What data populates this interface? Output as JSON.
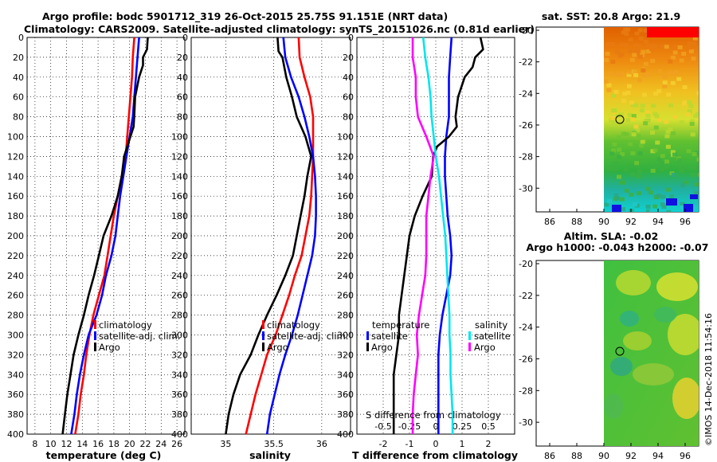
{
  "header": {
    "line1": "Argo profile: bodc 5901712_319 26-Oct-2015 25.75S 91.151E (NRT data)",
    "line2": "Climatology: CARS2009. Satellite-adjusted climatology: synTS_20151026.nc (0.81d earlier)"
  },
  "credit": "©IMOS 14-Dec-2018 11:54:16",
  "colors": {
    "climatology": "#ff0000",
    "satellite": "#0000ff",
    "argo": "#000000",
    "sal_sat": "#00e5ee",
    "sal_argo": "#ff00ff"
  },
  "chart_data": [
    {
      "type": "line",
      "name": "temperature",
      "xlabel": "temperature (deg C)",
      "ylabel": "depth",
      "xlim": [
        7,
        27
      ],
      "ylim": [
        0,
        400
      ],
      "xticks": [
        8,
        10,
        12,
        14,
        16,
        18,
        20,
        22,
        24,
        26
      ],
      "yticks": [
        0,
        20,
        40,
        60,
        80,
        100,
        120,
        140,
        160,
        180,
        200,
        220,
        240,
        260,
        280,
        300,
        320,
        340,
        360,
        380,
        400
      ],
      "legend": [
        "climatology",
        "satellite-adj. clim.",
        "Argo"
      ],
      "series": [
        {
          "name": "climatology",
          "points": [
            [
              20.6,
              0
            ],
            [
              20.4,
              20
            ],
            [
              20.3,
              40
            ],
            [
              20.1,
              60
            ],
            [
              19.9,
              80
            ],
            [
              19.7,
              100
            ],
            [
              19.5,
              120
            ],
            [
              19.0,
              140
            ],
            [
              18.5,
              160
            ],
            [
              18.0,
              180
            ],
            [
              17.6,
              200
            ],
            [
              17.2,
              220
            ],
            [
              16.8,
              240
            ],
            [
              16.1,
              260
            ],
            [
              15.4,
              280
            ],
            [
              14.9,
              300
            ],
            [
              14.5,
              320
            ],
            [
              14.2,
              340
            ],
            [
              13.8,
              360
            ],
            [
              13.5,
              380
            ],
            [
              13.1,
              400
            ]
          ]
        },
        {
          "name": "satellite-adj. clim.",
          "points": [
            [
              21.2,
              0
            ],
            [
              21.0,
              20
            ],
            [
              20.8,
              40
            ],
            [
              20.6,
              60
            ],
            [
              20.4,
              80
            ],
            [
              20.0,
              100
            ],
            [
              19.6,
              120
            ],
            [
              19.2,
              140
            ],
            [
              18.8,
              160
            ],
            [
              18.5,
              180
            ],
            [
              18.2,
              200
            ],
            [
              17.7,
              220
            ],
            [
              17.0,
              240
            ],
            [
              16.5,
              260
            ],
            [
              15.8,
              280
            ],
            [
              14.8,
              300
            ],
            [
              14.2,
              320
            ],
            [
              13.7,
              340
            ],
            [
              13.3,
              360
            ],
            [
              13.0,
              380
            ],
            [
              12.6,
              400
            ]
          ]
        },
        {
          "name": "Argo",
          "points": [
            [
              22.3,
              0
            ],
            [
              22.2,
              12
            ],
            [
              21.7,
              20
            ],
            [
              21.7,
              28
            ],
            [
              21.2,
              40
            ],
            [
              20.7,
              60
            ],
            [
              20.6,
              78
            ],
            [
              20.5,
              90
            ],
            [
              20.1,
              100
            ],
            [
              19.7,
              110
            ],
            [
              19.3,
              120
            ],
            [
              19.0,
              140
            ],
            [
              18.5,
              160
            ],
            [
              17.7,
              180
            ],
            [
              16.7,
              200
            ],
            [
              16.1,
              220
            ],
            [
              15.5,
              240
            ],
            [
              14.8,
              260
            ],
            [
              14.2,
              280
            ],
            [
              13.5,
              300
            ],
            [
              12.9,
              320
            ],
            [
              12.5,
              340
            ],
            [
              12.1,
              360
            ],
            [
              11.8,
              380
            ],
            [
              11.5,
              400
            ]
          ]
        }
      ]
    },
    {
      "type": "line",
      "name": "salinity",
      "xlabel": "salinity",
      "xlim": [
        34.64,
        36.3
      ],
      "ylim": [
        0,
        400
      ],
      "xticks": [
        35,
        35.5,
        36
      ],
      "yticks": [
        0,
        20,
        40,
        60,
        80,
        100,
        120,
        140,
        160,
        180,
        200,
        220,
        240,
        260,
        280,
        300,
        320,
        340,
        360,
        380,
        400
      ],
      "legend": [
        "climatology",
        "satellite-adj. clim.",
        "Argo"
      ],
      "series": [
        {
          "name": "climatology",
          "points": [
            [
              35.76,
              0
            ],
            [
              35.77,
              20
            ],
            [
              35.82,
              40
            ],
            [
              35.88,
              60
            ],
            [
              35.91,
              80
            ],
            [
              35.91,
              100
            ],
            [
              35.91,
              120
            ],
            [
              35.9,
              140
            ],
            [
              35.89,
              160
            ],
            [
              35.87,
              180
            ],
            [
              35.83,
              200
            ],
            [
              35.79,
              220
            ],
            [
              35.72,
              240
            ],
            [
              35.66,
              260
            ],
            [
              35.59,
              280
            ],
            [
              35.52,
              300
            ],
            [
              35.43,
              320
            ],
            [
              35.37,
              340
            ],
            [
              35.31,
              360
            ],
            [
              35.26,
              380
            ],
            [
              35.21,
              400
            ]
          ]
        },
        {
          "name": "satellite-adj. clim.",
          "points": [
            [
              35.6,
              0
            ],
            [
              35.62,
              20
            ],
            [
              35.68,
              40
            ],
            [
              35.76,
              60
            ],
            [
              35.82,
              80
            ],
            [
              35.87,
              100
            ],
            [
              35.91,
              120
            ],
            [
              35.93,
              140
            ],
            [
              35.94,
              160
            ],
            [
              35.94,
              180
            ],
            [
              35.93,
              200
            ],
            [
              35.9,
              220
            ],
            [
              35.85,
              240
            ],
            [
              35.8,
              260
            ],
            [
              35.75,
              280
            ],
            [
              35.69,
              300
            ],
            [
              35.62,
              320
            ],
            [
              35.56,
              340
            ],
            [
              35.51,
              360
            ],
            [
              35.46,
              380
            ],
            [
              35.43,
              400
            ]
          ]
        },
        {
          "name": "Argo",
          "points": [
            [
              35.54,
              0
            ],
            [
              35.55,
              14
            ],
            [
              35.59,
              20
            ],
            [
              35.63,
              40
            ],
            [
              35.69,
              60
            ],
            [
              35.74,
              80
            ],
            [
              35.83,
              100
            ],
            [
              35.89,
              120
            ],
            [
              35.85,
              140
            ],
            [
              35.82,
              160
            ],
            [
              35.78,
              180
            ],
            [
              35.74,
              200
            ],
            [
              35.7,
              220
            ],
            [
              35.62,
              240
            ],
            [
              35.53,
              260
            ],
            [
              35.43,
              280
            ],
            [
              35.34,
              300
            ],
            [
              35.26,
              320
            ],
            [
              35.15,
              340
            ],
            [
              35.08,
              360
            ],
            [
              35.03,
              380
            ],
            [
              35.0,
              400
            ]
          ]
        }
      ]
    },
    {
      "type": "line",
      "name": "difference",
      "xlabel": "T difference from climatology",
      "top_axis_label": "S difference from climatology",
      "xlim": [
        -3,
        3
      ],
      "s_xlim": [
        -0.75,
        0.75
      ],
      "ylim": [
        0,
        400
      ],
      "xticks": [
        -2,
        -1,
        0,
        1,
        2
      ],
      "xticklabels": [
        "-2",
        "-1",
        "0",
        "1",
        "2"
      ],
      "s_xticks": [
        -0.5,
        -0.25,
        0,
        0.25,
        0.5
      ],
      "s_xticklabels": [
        "-0.5",
        "-0.25",
        "0",
        "0.25",
        "0.5"
      ],
      "yticks": [
        0,
        20,
        40,
        60,
        80,
        100,
        120,
        140,
        160,
        180,
        200,
        220,
        240,
        260,
        280,
        300,
        320,
        340,
        360,
        380,
        400
      ],
      "legend_left_title": "temperature",
      "legend_left": [
        "satellite",
        "Argo"
      ],
      "legend_right_title": "salinity",
      "legend_right": [
        "satellite",
        "Argo"
      ],
      "series": [
        {
          "name": "T satellite",
          "group": "temperature",
          "points": [
            [
              0.6,
              0
            ],
            [
              0.55,
              20
            ],
            [
              0.5,
              40
            ],
            [
              0.5,
              60
            ],
            [
              0.5,
              80
            ],
            [
              0.4,
              100
            ],
            [
              0.35,
              120
            ],
            [
              0.35,
              140
            ],
            [
              0.4,
              160
            ],
            [
              0.45,
              180
            ],
            [
              0.55,
              200
            ],
            [
              0.6,
              220
            ],
            [
              0.55,
              240
            ],
            [
              0.4,
              260
            ],
            [
              0.25,
              280
            ],
            [
              0.15,
              300
            ],
            [
              0.1,
              320
            ],
            [
              0.1,
              340
            ],
            [
              0.1,
              360
            ],
            [
              0.1,
              380
            ],
            [
              0.1,
              400
            ]
          ]
        },
        {
          "name": "T Argo",
          "group": "temperature",
          "points": [
            [
              1.7,
              0
            ],
            [
              1.8,
              12
            ],
            [
              1.5,
              20
            ],
            [
              1.4,
              30
            ],
            [
              1.1,
              40
            ],
            [
              0.85,
              60
            ],
            [
              0.75,
              80
            ],
            [
              0.8,
              90
            ],
            [
              0.5,
              100
            ],
            [
              0.05,
              110
            ],
            [
              -0.1,
              120
            ],
            [
              -0.15,
              140
            ],
            [
              -0.5,
              160
            ],
            [
              -0.8,
              180
            ],
            [
              -1.0,
              200
            ],
            [
              -1.1,
              220
            ],
            [
              -1.2,
              240
            ],
            [
              -1.3,
              260
            ],
            [
              -1.4,
              280
            ],
            [
              -1.4,
              300
            ],
            [
              -1.5,
              320
            ],
            [
              -1.6,
              340
            ],
            [
              -1.6,
              360
            ],
            [
              -1.6,
              380
            ],
            [
              -1.6,
              400
            ]
          ]
        },
        {
          "name": "S satellite",
          "group": "salinity",
          "points": [
            [
              -0.12,
              0
            ],
            [
              -0.1,
              20
            ],
            [
              -0.07,
              40
            ],
            [
              -0.05,
              60
            ],
            [
              -0.04,
              80
            ],
            [
              -0.02,
              100
            ],
            [
              0.0,
              120
            ],
            [
              0.03,
              140
            ],
            [
              0.05,
              160
            ],
            [
              0.07,
              180
            ],
            [
              0.09,
              200
            ],
            [
              0.1,
              220
            ],
            [
              0.11,
              240
            ],
            [
              0.12,
              260
            ],
            [
              0.13,
              280
            ],
            [
              0.13,
              300
            ],
            [
              0.14,
              320
            ],
            [
              0.14,
              340
            ],
            [
              0.15,
              360
            ],
            [
              0.16,
              380
            ],
            [
              0.16,
              400
            ]
          ]
        },
        {
          "name": "S Argo",
          "group": "salinity",
          "points": [
            [
              -0.22,
              0
            ],
            [
              -0.22,
              20
            ],
            [
              -0.19,
              40
            ],
            [
              -0.19,
              60
            ],
            [
              -0.17,
              80
            ],
            [
              -0.09,
              100
            ],
            [
              -0.02,
              120
            ],
            [
              -0.05,
              140
            ],
            [
              -0.07,
              160
            ],
            [
              -0.09,
              180
            ],
            [
              -0.09,
              200
            ],
            [
              -0.09,
              220
            ],
            [
              -0.1,
              240
            ],
            [
              -0.13,
              260
            ],
            [
              -0.16,
              280
            ],
            [
              -0.18,
              300
            ],
            [
              -0.17,
              320
            ],
            [
              -0.19,
              340
            ],
            [
              -0.21,
              360
            ],
            [
              -0.22,
              380
            ],
            [
              -0.22,
              400
            ]
          ]
        }
      ]
    },
    {
      "type": "heatmap",
      "name": "sst_map",
      "title": "sat. SST: 20.8 Argo: 21.9",
      "xlim": [
        85,
        97
      ],
      "ylim": [
        -31.5,
        -20
      ],
      "xticks": [
        86,
        88,
        90,
        92,
        94,
        96
      ],
      "yticks": [
        -20,
        -22,
        -24,
        -26,
        -28,
        -30
      ],
      "data_lon_range": [
        90,
        97
      ],
      "float_position": {
        "lon": 91.151,
        "lat": -25.75
      }
    },
    {
      "type": "heatmap",
      "name": "sla_map",
      "title_line1": "Altim. SLA: -0.02",
      "title_line2": "Argo h1000: -0.043 h2000: -0.07",
      "xlim": [
        85,
        97
      ],
      "ylim": [
        -31.5,
        -20
      ],
      "xticks": [
        86,
        88,
        90,
        92,
        94,
        96
      ],
      "yticks": [
        -20,
        -22,
        -24,
        -26,
        -28,
        -30
      ],
      "data_lon_range": [
        90,
        97
      ],
      "float_position": {
        "lon": 91.151,
        "lat": -25.75
      }
    }
  ]
}
